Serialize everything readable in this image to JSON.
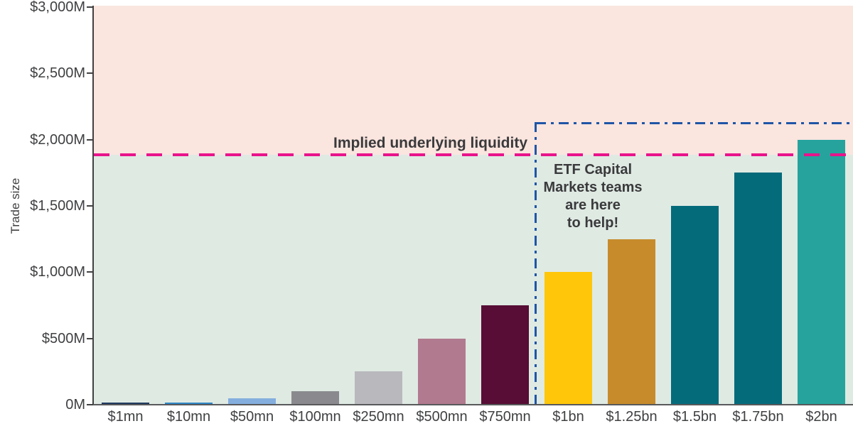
{
  "chart_data": {
    "type": "bar",
    "title": "",
    "xlabel": "",
    "ylabel": "Trade size",
    "categories": [
      "$1mn",
      "$10mn",
      "$50mn",
      "$100mn",
      "$250mn",
      "$500mn",
      "$750mn",
      "$1bn",
      "$1.25bn",
      "$1.5bn",
      "$1.75bn",
      "$2bn"
    ],
    "values": [
      1,
      10,
      50,
      100,
      250,
      500,
      750,
      1000,
      1250,
      1500,
      1750,
      2000
    ],
    "value_unit": "USD millions",
    "ylim": [
      0,
      3000
    ],
    "grid": false,
    "legend": "none",
    "yticks": [
      0,
      500,
      1000,
      1500,
      2000,
      2500,
      3000
    ],
    "ytick_labels": [
      "0M",
      "$500M",
      "$1,000M",
      "$1,500M",
      "$2,000M",
      "$2,500M",
      "$3,000M"
    ],
    "bar_colors": [
      "#1f3a5f",
      "#2e86c6",
      "#84aede",
      "#8a8a8e",
      "#b9b8bd",
      "#b17a8e",
      "#570d35",
      "#ffc60a",
      "#c78b2b",
      "#046b7b",
      "#046b7b",
      "#26a39d"
    ],
    "background_regions": [
      {
        "name": "above-implied-liquidity",
        "color": "#fae5df"
      },
      {
        "name": "below-implied-liquidity",
        "color": "#dfeae3"
      }
    ],
    "reference_line": {
      "label": "Implied underlying liquidity",
      "value": 1890,
      "color": "#e9138b",
      "style": "dashed"
    },
    "highlight_box": {
      "label_lines": [
        "ETF Capital",
        "Markets teams",
        "are here",
        "to help!"
      ],
      "from_category": "$1bn",
      "to_category": "$2bn",
      "top_value": 2120,
      "color": "#1f55a6",
      "style": "dash-dot",
      "text_color": "#3a3a3c"
    },
    "axis_color": "#414042",
    "tick_label_color": "#3f4042"
  }
}
